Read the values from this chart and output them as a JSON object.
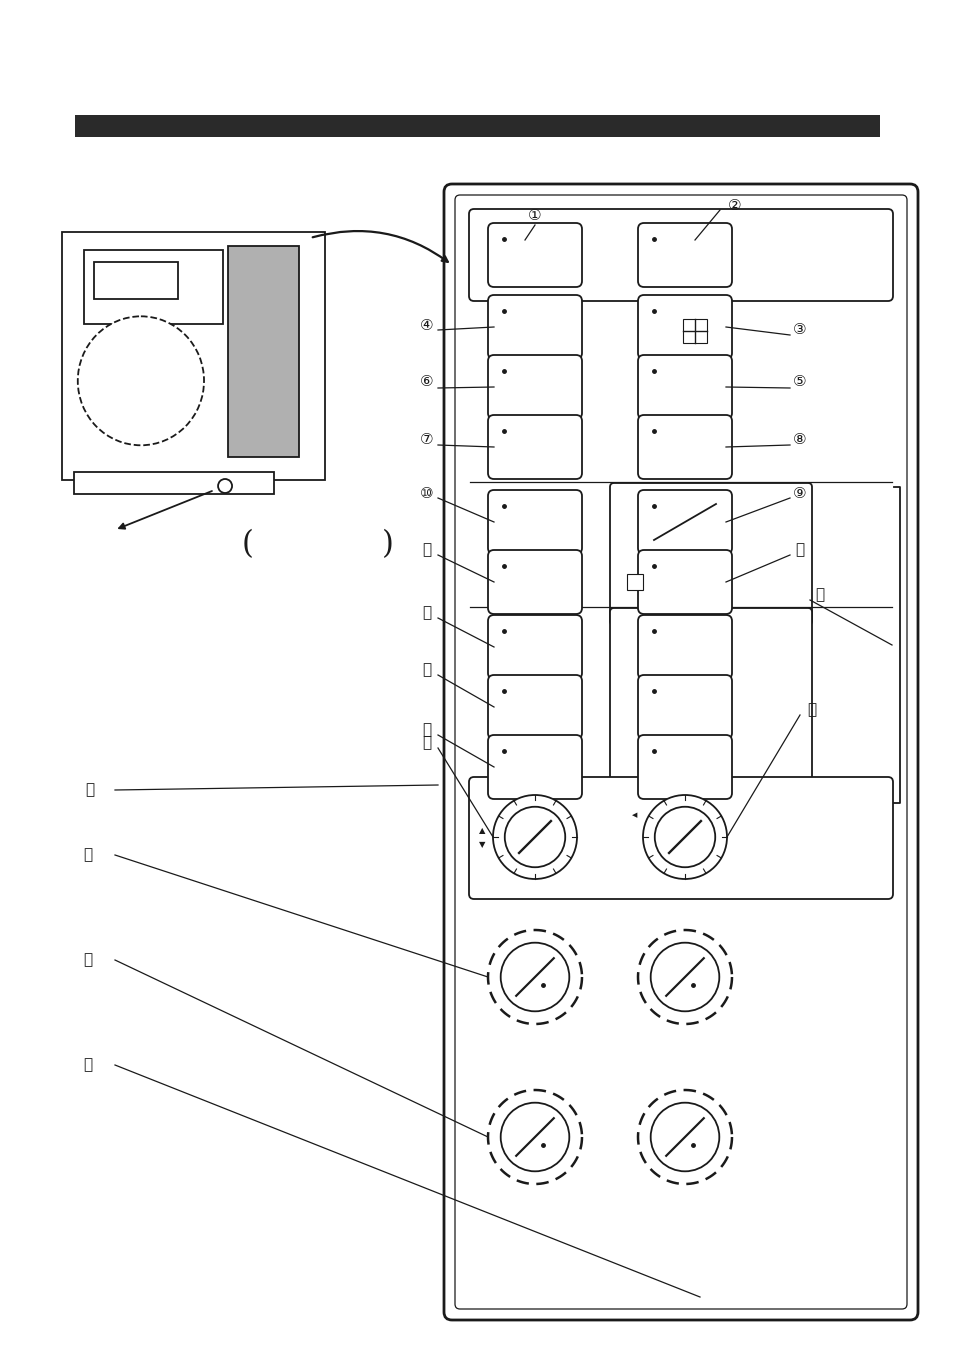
{
  "bg_color": "#ffffff",
  "line_color": "#1a1a1a",
  "bar_color": "#2a2a2a",
  "gray_fill": "#b0b0b0",
  "figsize": [
    9.54,
    13.49
  ],
  "dpi": 100
}
